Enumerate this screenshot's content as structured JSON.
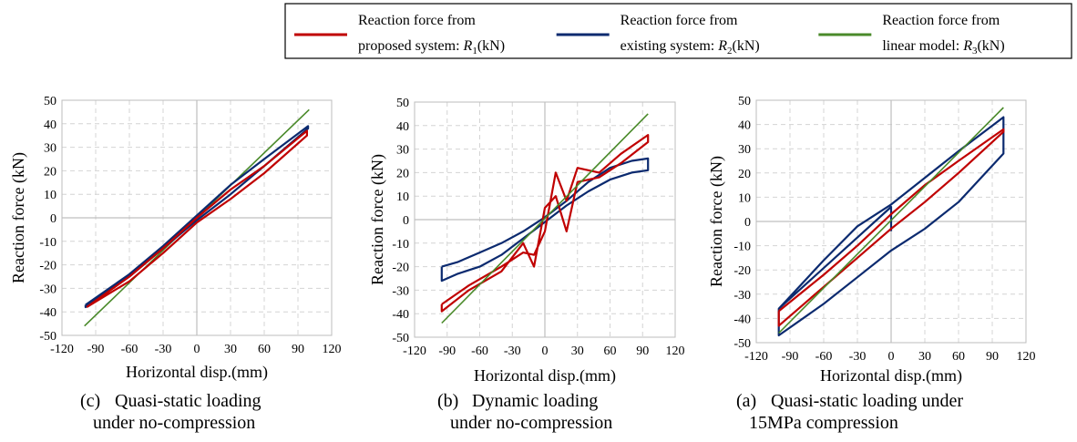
{
  "legend": {
    "placement": "top",
    "entries": [
      {
        "line1": "Reaction force from",
        "line2": "proposed system: ",
        "sym": "R",
        "sub": "1",
        "unit": "(kN)",
        "color": "#c00000"
      },
      {
        "line1": "Reaction force from",
        "line2": "existing system: ",
        "sym": "R",
        "sub": "2",
        "unit": "(kN)",
        "color": "#0b2a6f"
      },
      {
        "line1": "Reaction force from",
        "line2": "linear model: ",
        "sym": "R",
        "sub": "3",
        "unit": "(kN)",
        "color": "#4a8a2a"
      }
    ]
  },
  "chart_data": [
    {
      "type": "line",
      "caption_label": "(c)",
      "caption_line1": "Quasi-static loading",
      "caption_line2": "under no-compression",
      "xlabel": "Horizontal  disp.(mm)",
      "ylabel": "Reaction  force (kN)",
      "xlim": [
        -120,
        120
      ],
      "ylim": [
        -50,
        50
      ],
      "xticks": [
        -120,
        -90,
        -60,
        -30,
        0,
        30,
        60,
        90,
        120
      ],
      "yticks": [
        -50,
        -40,
        -30,
        -20,
        -10,
        0,
        10,
        20,
        30,
        40,
        50
      ],
      "grid": true,
      "series": [
        {
          "key": "R3",
          "color": "#4a8a2a",
          "x": [
            -100,
            100
          ],
          "y": [
            -46,
            46
          ]
        },
        {
          "key": "R2",
          "color": "#0b2a6f",
          "x": [
            -99,
            -60,
            -30,
            0,
            30,
            60,
            99,
            99,
            60,
            30,
            0,
            -30,
            -60,
            -99,
            -99
          ],
          "y": [
            -37,
            -24,
            -12,
            1,
            14,
            25,
            39,
            38,
            22,
            10,
            -1,
            -13,
            -25,
            -38,
            -37
          ]
        },
        {
          "key": "R1",
          "color": "#c00000",
          "x": [
            -98,
            -60,
            -30,
            0,
            30,
            60,
            98,
            98,
            60,
            30,
            0,
            -30,
            -60,
            -98,
            -98
          ],
          "y": [
            -38,
            -25,
            -13,
            0,
            12,
            22,
            37,
            35,
            19,
            8,
            -2,
            -15,
            -27,
            -38,
            -38
          ]
        }
      ]
    },
    {
      "type": "line",
      "caption_label": "(b)",
      "caption_line1": "Dynamic loading",
      "caption_line2": "under no-compression",
      "xlabel": "Horizontal  disp.(mm)",
      "ylabel": "Reaction  force (kN)",
      "xlim": [
        -120,
        120
      ],
      "ylim": [
        -50,
        50
      ],
      "xticks": [
        -120,
        -90,
        -60,
        -30,
        0,
        30,
        60,
        90,
        120
      ],
      "yticks": [
        -50,
        -40,
        -30,
        -20,
        -10,
        0,
        10,
        20,
        30,
        40,
        50
      ],
      "grid": true,
      "series": [
        {
          "key": "R2",
          "color": "#0b2a6f",
          "x": [
            -95,
            -80,
            -60,
            -40,
            -20,
            0,
            20,
            40,
            60,
            80,
            95,
            95,
            80,
            60,
            40,
            20,
            0,
            -20,
            -40,
            -60,
            -80,
            -95,
            -95
          ],
          "y": [
            -20,
            -18,
            -14,
            -10,
            -5,
            1,
            8,
            16,
            22,
            25,
            26,
            21,
            20,
            17,
            12,
            6,
            -1,
            -8,
            -15,
            -20,
            -23,
            -26,
            -20
          ]
        },
        {
          "key": "R1",
          "color": "#c00000",
          "x": [
            -95,
            -70,
            -40,
            -20,
            -10,
            0,
            10,
            20,
            30,
            50,
            70,
            95,
            95,
            70,
            50,
            30,
            20,
            10,
            0,
            -10,
            -20,
            -40,
            -70,
            -95,
            -95
          ],
          "y": [
            -36,
            -28,
            -20,
            -14,
            -15,
            -5,
            20,
            8,
            22,
            20,
            28,
            36,
            33,
            24,
            18,
            16,
            -5,
            10,
            5,
            -20,
            -10,
            -22,
            -30,
            -39,
            -36
          ]
        },
        {
          "key": "R3",
          "color": "#4a8a2a",
          "x": [
            -95,
            95
          ],
          "y": [
            -44,
            45
          ]
        }
      ]
    },
    {
      "type": "line",
      "caption_label": "(a)",
      "caption_line1": "Quasi-static loading under",
      "caption_line2": "15MPa compression",
      "xlabel": "Horizontal  disp.(mm)",
      "ylabel": "Reaction  force (kN)",
      "xlim": [
        -120,
        120
      ],
      "ylim": [
        -50,
        50
      ],
      "xticks": [
        -120,
        -90,
        -60,
        -30,
        0,
        30,
        60,
        90,
        120
      ],
      "yticks": [
        -50,
        -40,
        -30,
        -20,
        -10,
        0,
        10,
        20,
        30,
        40,
        50
      ],
      "grid": true,
      "series": [
        {
          "key": "R2",
          "color": "#0b2a6f",
          "x": [
            -100,
            -60,
            -30,
            0,
            30,
            60,
            100,
            100,
            60,
            30,
            0,
            -30,
            -60,
            -100,
            -100,
            0,
            0
          ],
          "y": [
            -36,
            -16,
            -2,
            7,
            18,
            29,
            43,
            28,
            8,
            -3,
            -12,
            -23,
            -34,
            -47,
            -36,
            6,
            -4
          ]
        },
        {
          "key": "R1",
          "color": "#c00000",
          "x": [
            -100,
            -60,
            -30,
            0,
            30,
            60,
            100,
            100,
            60,
            30,
            0,
            -30,
            -60,
            -100,
            -100
          ],
          "y": [
            -37,
            -22,
            -10,
            3,
            15,
            25,
            38,
            37,
            20,
            8,
            -3,
            -15,
            -27,
            -43,
            -37
          ]
        },
        {
          "key": "R3",
          "color": "#4a8a2a",
          "x": [
            -100,
            100
          ],
          "y": [
            -46,
            47
          ]
        }
      ]
    }
  ]
}
